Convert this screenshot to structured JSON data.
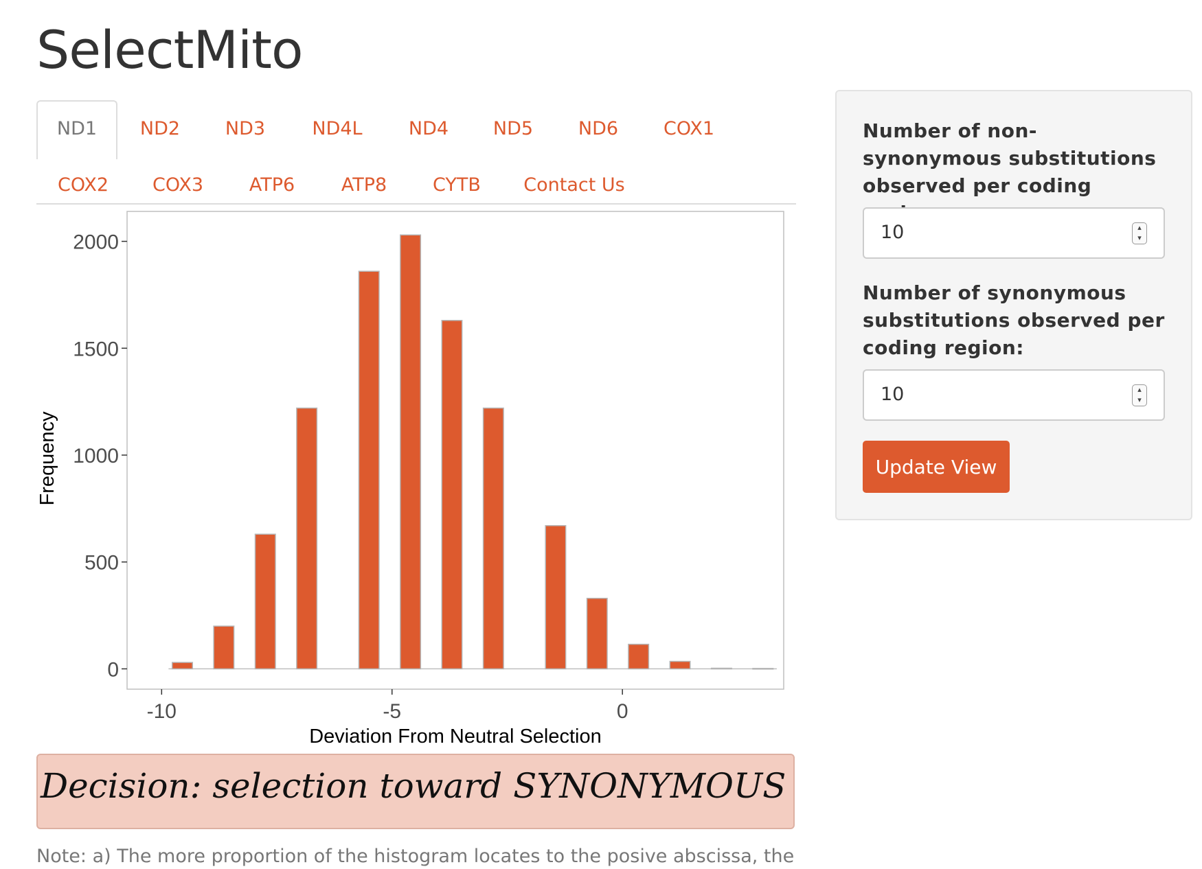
{
  "app": {
    "title": "SelectMito"
  },
  "tabs": [
    {
      "label": "ND1",
      "active": true
    },
    {
      "label": "ND2"
    },
    {
      "label": "ND3"
    },
    {
      "label": "ND4L"
    },
    {
      "label": "ND4"
    },
    {
      "label": "ND5"
    },
    {
      "label": "ND6"
    },
    {
      "label": "COX1"
    },
    {
      "label": "COX2"
    },
    {
      "label": "COX3"
    },
    {
      "label": "ATP6"
    },
    {
      "label": "ATP8"
    },
    {
      "label": "CYTB"
    },
    {
      "label": "Contact Us"
    }
  ],
  "sidebar": {
    "nonsyn_label": "Number of non-synonymous substitutions observed per coding region:",
    "nonsyn_value": "10",
    "syn_label": "Number of synonymous substitutions observed per coding region:",
    "syn_value": "10",
    "update_button": "Update View"
  },
  "chart_data": {
    "type": "bar",
    "xlabel": "Deviation From Neutral Selection",
    "ylabel": "Frequency",
    "xlim": [
      -10.75,
      3.5
    ],
    "ylim": [
      -95,
      2140
    ],
    "xticks": [
      -10,
      -5,
      0
    ],
    "yticks": [
      0,
      500,
      1000,
      1500,
      2000
    ],
    "bar_width": 0.44,
    "x": [
      -9.55,
      -8.65,
      -7.75,
      -6.85,
      -5.5,
      -4.6,
      -3.7,
      -2.8,
      -1.45,
      -0.55,
      0.35,
      1.25,
      2.15,
      3.05
    ],
    "values": [
      30,
      200,
      630,
      1220,
      1860,
      2030,
      1630,
      1220,
      670,
      330,
      115,
      35,
      3,
      2
    ],
    "bar_color": "#dd5a2e",
    "bar_edge": "#b5b5b5",
    "grid": false
  },
  "decision": {
    "text": "Decision: selection toward SYNONYMOUS substitutions"
  },
  "note": {
    "text": "Note: a) The more proportion of the histogram locates to the posive abscissa, the more"
  },
  "colors": {
    "accent": "#dd5a2e",
    "decision_bg": "#f3cdc1"
  }
}
